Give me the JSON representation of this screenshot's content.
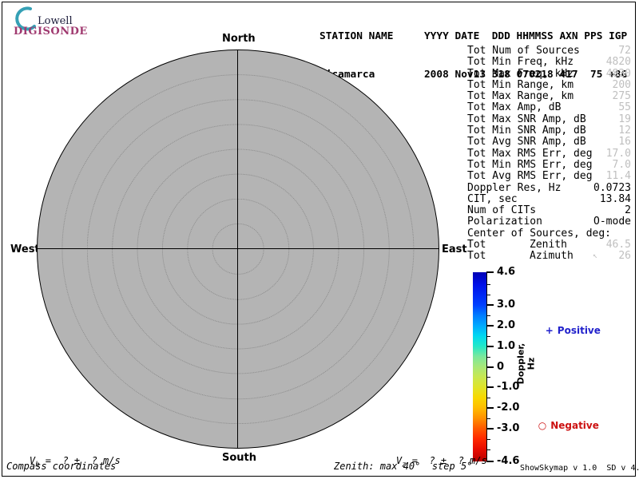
{
  "logo": {
    "line1": "Lowell",
    "line2": "DIGISONDE",
    "arc_color": "#35a0b5",
    "lowell_color": "#1b1b3a",
    "digisonde_color": "#a03a70"
  },
  "header": {
    "row1": "STATION NAME     YYYY DATE  DDD HHMMSS AXN PPS IGP",
    "row2": "Jicamarca        2008 Nov13 318 070218 417  75 +8G"
  },
  "compass": {
    "north": "North",
    "south": "South",
    "east": "East",
    "west": "West"
  },
  "plot": {
    "coordinates_note": "Compass coordinates",
    "zenith_note": "Zenith: max 40°  step 5°",
    "max_zenith_deg": 40,
    "ring_step_deg": 5,
    "inner_ring_count": 7,
    "disc_color": "#b4b4b4",
    "ring_dot_color": "#8a8a8a"
  },
  "stats": {
    "muted_value_color": "#bfbfbf",
    "rows": [
      {
        "label": "Tot Num of Sources",
        "value": "72",
        "muted": true
      },
      {
        "label": "Tot Min Freq, kHz",
        "value": "4820",
        "muted": true
      },
      {
        "label": "Tot Max Freq, kHz",
        "value": "4820",
        "muted": true
      },
      {
        "label": "Tot Min Range, km",
        "value": "200",
        "muted": true
      },
      {
        "label": "Tot Max Range, km",
        "value": "275",
        "muted": true
      },
      {
        "label": "Tot Max Amp, dB",
        "value": "55",
        "muted": true
      },
      {
        "label": "Tot Max SNR Amp, dB",
        "value": "19",
        "muted": true
      },
      {
        "label": "Tot Min SNR Amp, dB",
        "value": "12",
        "muted": true
      },
      {
        "label": "Tot Avg SNR Amp, dB",
        "value": "16",
        "muted": true
      },
      {
        "label": "Tot Max RMS Err, deg",
        "value": "17.0",
        "muted": true
      },
      {
        "label": "Tot Min RMS Err, deg",
        "value": "7.0",
        "muted": true
      },
      {
        "label": "Tot Avg RMS Err, deg",
        "value": "11.4",
        "muted": true
      },
      {
        "label": "Doppler Res, Hz",
        "value": "0.0723",
        "muted": false
      },
      {
        "label": "CIT, sec",
        "value": "13.84",
        "muted": false
      },
      {
        "label": "Num of CITs",
        "value": "2",
        "muted": false
      },
      {
        "label": "Polarization",
        "value": "O-mode",
        "muted": false
      },
      {
        "label": "Center of Sources, deg:",
        "value": "",
        "muted": false
      },
      {
        "label": "Tot",
        "mid": "Zenith",
        "value": "46.5",
        "muted": true
      },
      {
        "label": "Tot",
        "mid": "Azimuth",
        "arrow": "↖",
        "value": "26",
        "muted": true
      }
    ]
  },
  "colorbar": {
    "title": "Doppler, Hz",
    "max": 4.6,
    "min": -4.6,
    "ticks": [
      {
        "value": 4.6,
        "label": "4.6",
        "major": true
      },
      {
        "value": 4.0,
        "major": false
      },
      {
        "value": 3.5,
        "major": false
      },
      {
        "value": 3.0,
        "label": "3.0",
        "major": true
      },
      {
        "value": 2.5,
        "major": false
      },
      {
        "value": 2.0,
        "label": "2.0",
        "major": true
      },
      {
        "value": 1.5,
        "major": false
      },
      {
        "value": 1.0,
        "label": "1.0",
        "major": true
      },
      {
        "value": 0.5,
        "major": false
      },
      {
        "value": 0.0,
        "label": "0",
        "major": true
      },
      {
        "value": -0.5,
        "major": false
      },
      {
        "value": -1.0,
        "label": "-1.0",
        "major": true
      },
      {
        "value": -1.5,
        "major": false
      },
      {
        "value": -2.0,
        "label": "-2.0",
        "major": true
      },
      {
        "value": -2.5,
        "major": false
      },
      {
        "value": -3.0,
        "label": "-3.0",
        "major": true
      },
      {
        "value": -3.5,
        "major": false
      },
      {
        "value": -4.0,
        "major": false
      },
      {
        "value": -4.6,
        "label": "-4.6",
        "major": true
      }
    ],
    "gradient": [
      {
        "color": "#0000b4",
        "pct": 0
      },
      {
        "color": "#0010e8",
        "pct": 6.5
      },
      {
        "color": "#0040ff",
        "pct": 17.4
      },
      {
        "color": "#007cff",
        "pct": 22.8
      },
      {
        "color": "#00aaff",
        "pct": 28.3
      },
      {
        "color": "#00d8f0",
        "pct": 33.7
      },
      {
        "color": "#22e8c8",
        "pct": 39.1
      },
      {
        "color": "#7ce89c",
        "pct": 44.6
      },
      {
        "color": "#a8e878",
        "pct": 50
      },
      {
        "color": "#c8e850",
        "pct": 55.4
      },
      {
        "color": "#e0e428",
        "pct": 60.9
      },
      {
        "color": "#f8d800",
        "pct": 66.3
      },
      {
        "color": "#ffbc00",
        "pct": 71.7
      },
      {
        "color": "#ff9000",
        "pct": 77.2
      },
      {
        "color": "#ff5800",
        "pct": 82.6
      },
      {
        "color": "#ff2800",
        "pct": 88
      },
      {
        "color": "#e80c00",
        "pct": 93.5
      },
      {
        "color": "#b80000",
        "pct": 100
      }
    ],
    "legend": {
      "positive_marker": "+",
      "positive_label": "Positive",
      "positive_color": "#2222cc",
      "negative_marker": "○",
      "negative_label": "Negative",
      "negative_color": "#cc1111"
    }
  },
  "velocities": {
    "vh_symbol": "V",
    "vh_sub": "h",
    "vh_text": " =  ? ±  ? m/s",
    "vz_symbol": "V",
    "vz_sub": "z",
    "vz_text": " =  ? ±  ? m/s"
  },
  "footer": {
    "version": "ShowSkymap v 1.0  SD v 4.2"
  }
}
